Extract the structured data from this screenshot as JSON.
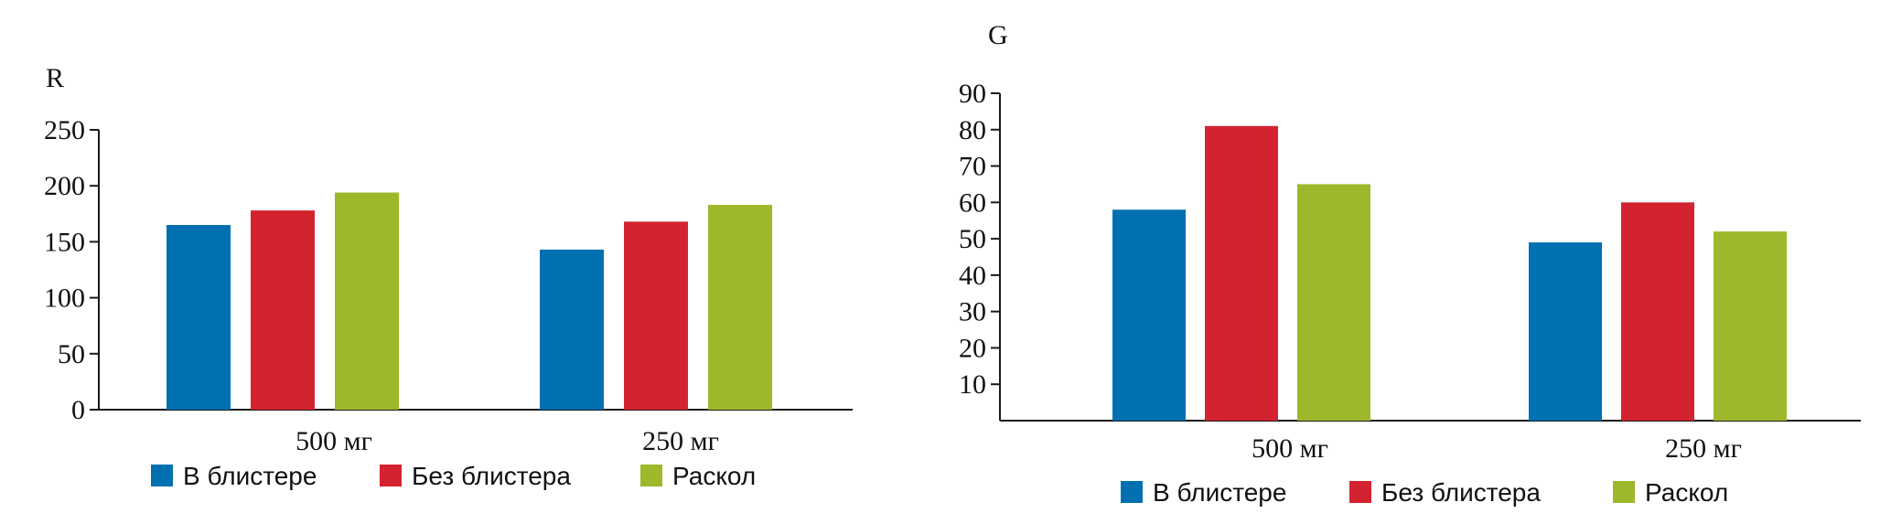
{
  "chart_data": [
    {
      "type": "bar",
      "title": "",
      "ylabel": "R",
      "xlabel": "",
      "categories": [
        "500 мг",
        "250 мг"
      ],
      "ylim": [
        0,
        250
      ],
      "yticks": [
        "0",
        "50",
        "100",
        "150",
        "200",
        "250"
      ],
      "series": [
        {
          "name": "В блистере",
          "color": "#0070b0",
          "values": [
            165,
            143
          ]
        },
        {
          "name": "Без блистера",
          "color": "#d42330",
          "values": [
            178,
            168
          ]
        },
        {
          "name": "Раскол",
          "color": "#9db82a",
          "values": [
            194,
            183
          ]
        }
      ],
      "legend_position": "bottom",
      "grid": false
    },
    {
      "type": "bar",
      "title": "",
      "ylabel": "G",
      "xlabel": "",
      "categories": [
        "500 мг",
        "250 мг"
      ],
      "ylim": [
        0,
        90
      ],
      "yticks": [
        "10",
        "20",
        "30",
        "40",
        "50",
        "60",
        "70",
        "80",
        "90"
      ],
      "series": [
        {
          "name": "В блистере",
          "color": "#0070b0",
          "values": [
            58,
            49
          ]
        },
        {
          "name": "Без блистера",
          "color": "#d42330",
          "values": [
            81,
            60
          ]
        },
        {
          "name": "Раскол",
          "color": "#9db82a",
          "values": [
            65,
            52
          ]
        }
      ],
      "legend_position": "bottom",
      "grid": false
    }
  ]
}
